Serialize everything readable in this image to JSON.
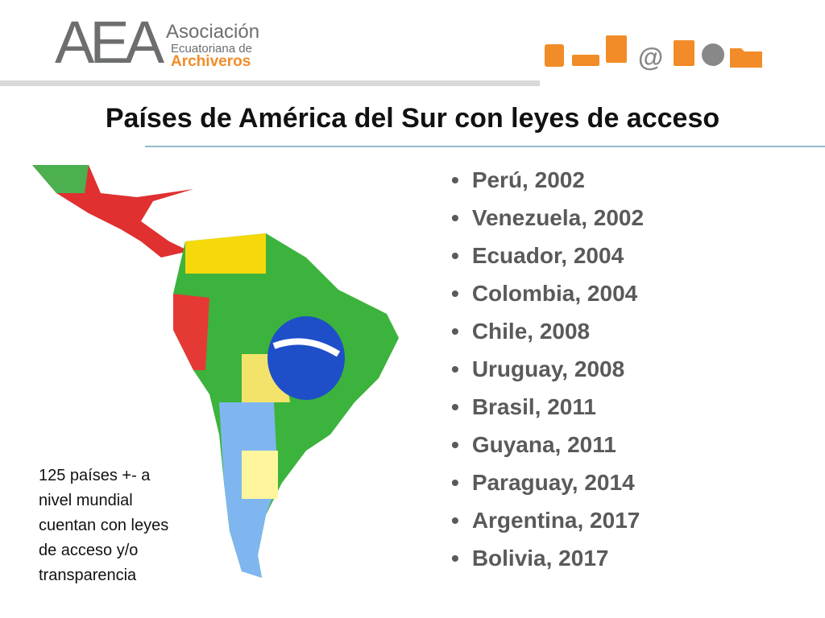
{
  "header": {
    "logo": {
      "acronym": "AEA",
      "line1": "Asociación",
      "line2": "Ecuatoriana de",
      "line3": "Archiveros"
    },
    "title": "Países de América del Sur con leyes de acceso"
  },
  "list": {
    "items": [
      "Perú, 2002",
      "Venezuela, 2002",
      "Ecuador, 2004",
      "Colombia, 2004",
      "Chile, 2008",
      "Uruguay, 2008",
      "Brasil, 2011",
      "Guyana, 2011",
      "Paraguay, 2014",
      "Argentina, 2017",
      "Bolivia, 2017"
    ]
  },
  "note": {
    "lines": [
      "125 países +- a",
      "nivel mundial",
      "cuentan con leyes",
      "de acceso y/o",
      "transparencia"
    ]
  }
}
